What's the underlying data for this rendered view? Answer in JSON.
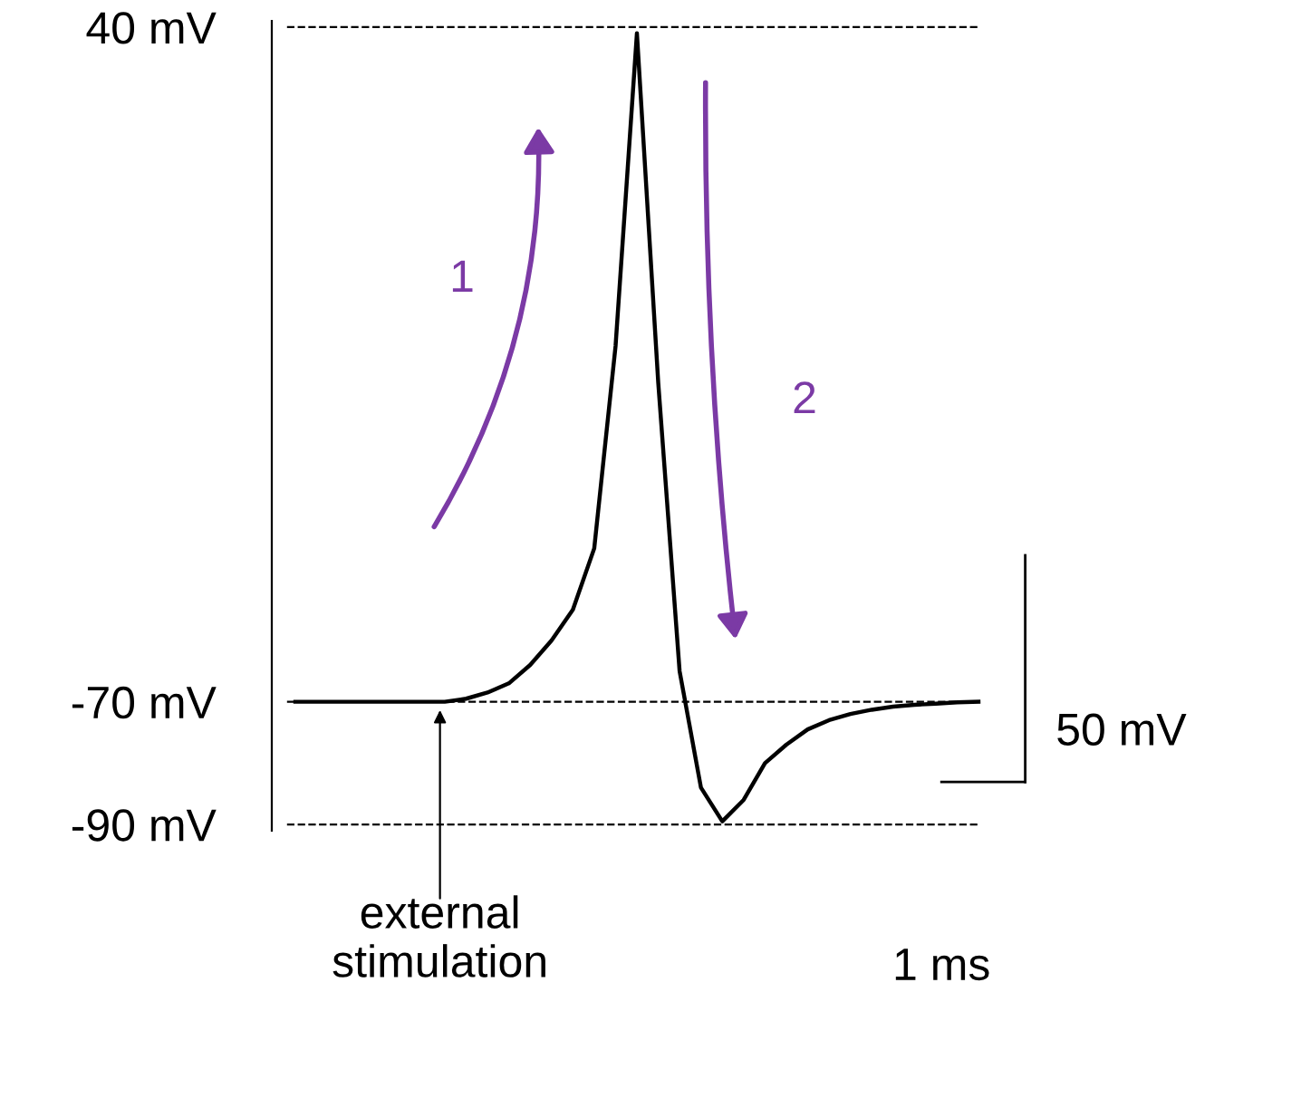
{
  "chart_data": {
    "type": "line",
    "categories": [
      null,
      null,
      null,
      null,
      null,
      null,
      null,
      null,
      null,
      null,
      null,
      null,
      null,
      null,
      null,
      null,
      null,
      null,
      null,
      null,
      null,
      null,
      null,
      null,
      null,
      null,
      null,
      null,
      null,
      null,
      null,
      null,
      null
    ],
    "series": [
      {
        "color": "#000000",
        "values": [
          -70,
          -70,
          -70,
          -70,
          -70,
          -70,
          -70,
          -70,
          -69.5,
          -68.5,
          -67,
          -64,
          -60,
          -55,
          -45,
          -12,
          39,
          -18,
          -65,
          -84,
          -89.5,
          -86,
          -80,
          -77,
          -74.5,
          -73,
          -72,
          -71.3,
          -70.8,
          -70.5,
          -70.3,
          -70.1,
          -70
        ]
      }
    ],
    "ylim": [
      -91,
      41
    ],
    "yticks": [
      {
        "value": 40,
        "label": "40 mV"
      },
      {
        "value": -70,
        "label": "-70 mV"
      },
      {
        "value": -90,
        "label": "-90 mV"
      }
    ],
    "tick_labels": "y",
    "grid": false,
    "marker": "none",
    "line_style": "solid",
    "ref_lines": [
      {
        "axis": "y",
        "value": 40,
        "line_style": "dashed",
        "color": "#000000"
      },
      {
        "axis": "y",
        "value": -70,
        "line_style": "dashed",
        "color": "#000000"
      },
      {
        "axis": "y",
        "value": -90,
        "line_style": "dashed",
        "color": "#000000"
      }
    ],
    "annotations": [
      "external\nstimulation",
      "1",
      "2",
      "50 mV",
      "1 ms"
    ]
  }
}
